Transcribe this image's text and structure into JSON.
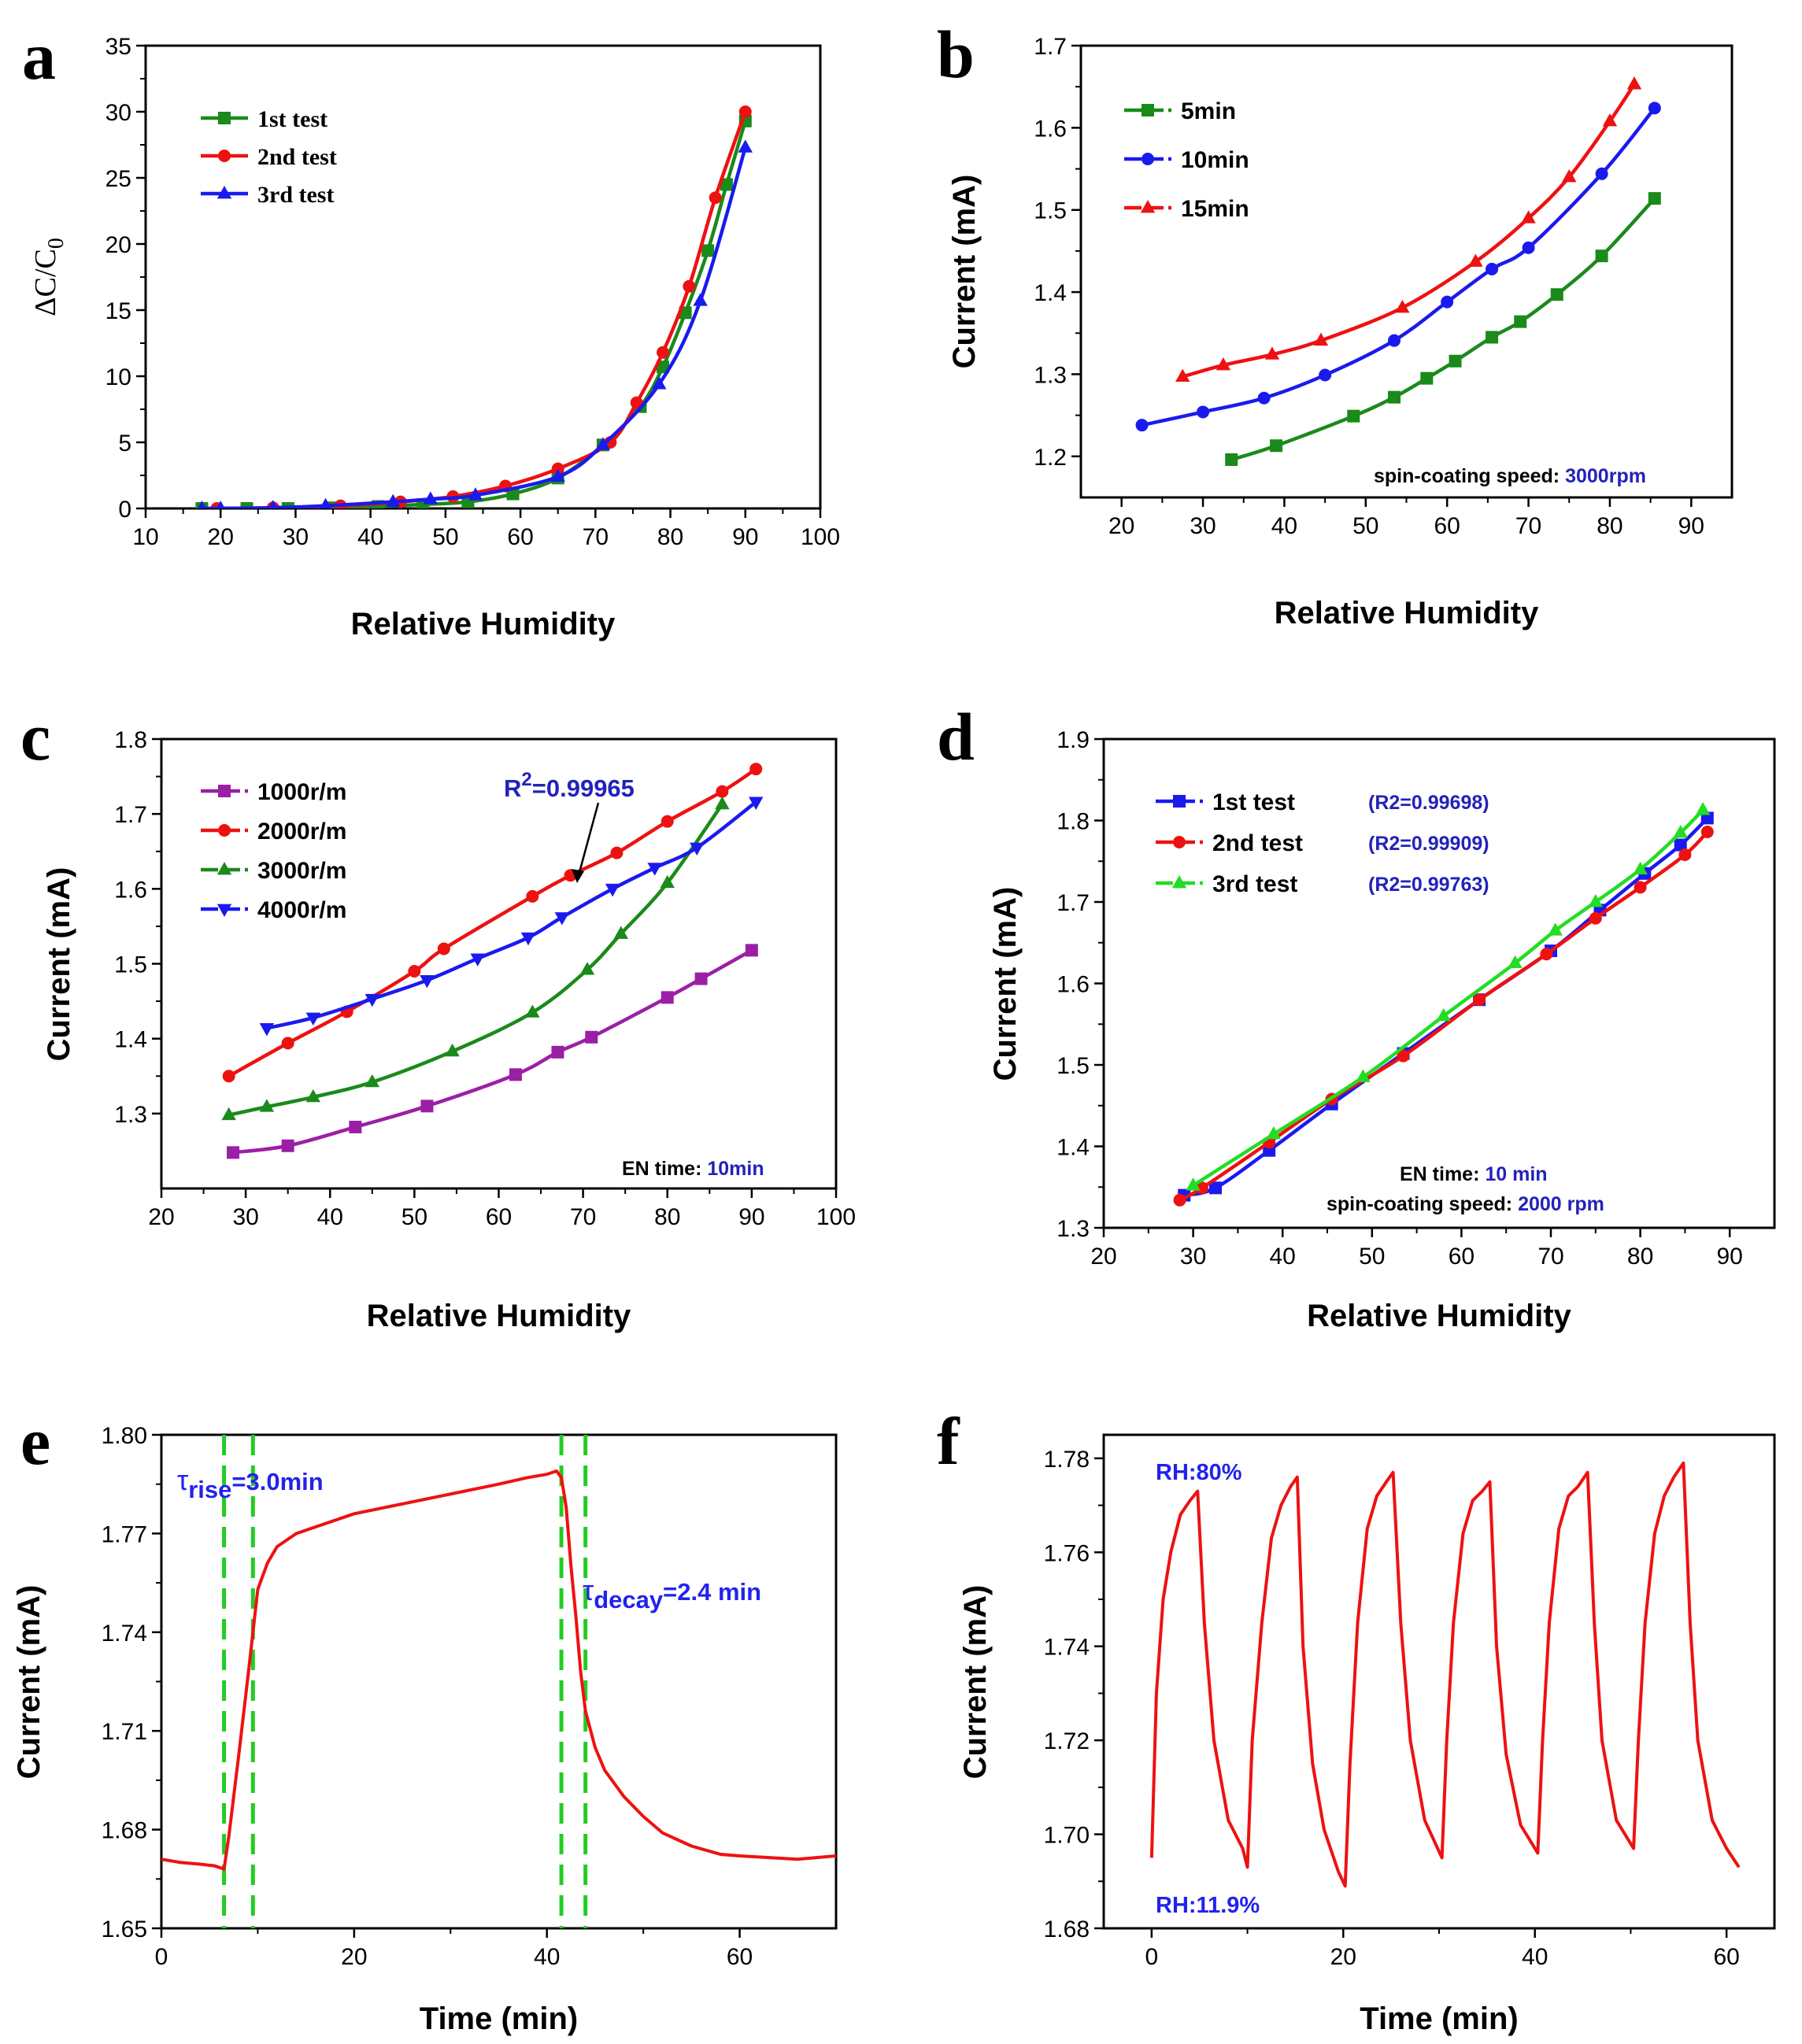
{
  "figure_labels": {
    "a": "a",
    "b": "b",
    "c": "c",
    "d": "d",
    "e": "e",
    "f": "f"
  },
  "chart_data": [
    {
      "id": "a",
      "type": "line",
      "xlabel": "Relative Humidity",
      "ylabel": "ΔC/C0",
      "xlim": [
        10,
        100
      ],
      "ylim": [
        0,
        35
      ],
      "xticks": [
        10,
        20,
        30,
        40,
        50,
        60,
        70,
        80,
        90,
        100
      ],
      "yticks": [
        0,
        5,
        10,
        15,
        20,
        25,
        30,
        35
      ],
      "legend_position": "top-left",
      "series": [
        {
          "name": "1st test",
          "color": "#1a8a1a",
          "marker": "square",
          "x": [
            17.5,
            23.5,
            29,
            35,
            41,
            47,
            53,
            59,
            65,
            71,
            76,
            79,
            82,
            85,
            87.5,
            90
          ],
          "y": [
            0,
            0,
            0,
            0.05,
            0.15,
            0.3,
            0.5,
            1.1,
            2.3,
            4.8,
            7.7,
            10.7,
            14.8,
            19.5,
            24.5,
            29.3
          ]
        },
        {
          "name": "2nd test",
          "color": "#ee1111",
          "marker": "circle",
          "x": [
            19.5,
            27,
            36,
            44,
            51,
            58,
            65,
            72,
            75.5,
            79,
            82.5,
            86,
            90
          ],
          "y": [
            0,
            0.05,
            0.2,
            0.5,
            0.9,
            1.7,
            3.0,
            5.0,
            8.0,
            11.8,
            16.8,
            23.5,
            30.0
          ]
        },
        {
          "name": "3rd test",
          "color": "#1a1aee",
          "marker": "triangle",
          "x": [
            17.5,
            20,
            27,
            34,
            43,
            48,
            54,
            65,
            71,
            78.5,
            84,
            90
          ],
          "y": [
            0,
            0,
            0.05,
            0.2,
            0.5,
            0.7,
            1.0,
            2.4,
            4.8,
            9.4,
            15.7,
            27.3
          ]
        }
      ]
    },
    {
      "id": "b",
      "type": "line",
      "xlabel": "Relative Humidity",
      "ylabel": "Current (mA)",
      "xlim": [
        15,
        95
      ],
      "ylim": [
        1.15,
        1.7
      ],
      "xticks": [
        20,
        30,
        40,
        50,
        60,
        70,
        80,
        90
      ],
      "yticks": [
        1.2,
        1.3,
        1.4,
        1.5,
        1.6,
        1.7
      ],
      "legend_position": "top-left",
      "annotations": [
        {
          "label": "spin-coating speed:",
          "value": "3000rpm"
        }
      ],
      "series": [
        {
          "name": "5min",
          "color": "#1a8a1a",
          "marker": "square",
          "x": [
            33.5,
            39,
            48.5,
            53.5,
            57.5,
            61,
            65.5,
            69,
            73.5,
            79,
            85.5
          ],
          "y": [
            1.196,
            1.213,
            1.249,
            1.272,
            1.295,
            1.316,
            1.345,
            1.364,
            1.397,
            1.444,
            1.514
          ]
        },
        {
          "name": "10min",
          "color": "#1a1aee",
          "marker": "circle",
          "x": [
            22.5,
            30,
            37.5,
            45,
            53.5,
            60,
            65.5,
            70,
            79,
            85.5
          ],
          "y": [
            1.238,
            1.254,
            1.271,
            1.299,
            1.341,
            1.388,
            1.428,
            1.454,
            1.544,
            1.624
          ]
        },
        {
          "name": "15min",
          "color": "#ee1111",
          "marker": "triangle",
          "x": [
            27.5,
            32.5,
            38.5,
            44.5,
            54.5,
            63.5,
            70,
            75,
            80,
            83
          ],
          "y": [
            1.297,
            1.311,
            1.324,
            1.341,
            1.381,
            1.437,
            1.49,
            1.54,
            1.608,
            1.653
          ]
        }
      ]
    },
    {
      "id": "c",
      "type": "line",
      "xlabel": "Relative Humidity",
      "ylabel": "Current (mA)",
      "xlim": [
        20,
        100
      ],
      "ylim": [
        1.2,
        1.8
      ],
      "xticks": [
        20,
        30,
        40,
        50,
        60,
        70,
        80,
        90,
        100
      ],
      "yticks": [
        1.3,
        1.4,
        1.5,
        1.6,
        1.7,
        1.8
      ],
      "legend_position": "top-left",
      "r2_annotation": "R²=0.99965",
      "annotations": [
        {
          "label": "EN time:",
          "value": "10min"
        }
      ],
      "series": [
        {
          "name": "1000r/m",
          "color": "#9b1fa6",
          "marker": "square",
          "x": [
            28.5,
            35,
            43,
            51.5,
            62,
            67,
            71,
            80,
            84,
            90
          ],
          "y": [
            1.248,
            1.257,
            1.282,
            1.31,
            1.352,
            1.382,
            1.402,
            1.455,
            1.48,
            1.518
          ]
        },
        {
          "name": "2000r/m",
          "color": "#ee1111",
          "marker": "circle",
          "x": [
            28,
            35,
            42,
            50,
            53.5,
            64,
            68.5,
            74,
            80,
            86.5,
            90.5
          ],
          "y": [
            1.35,
            1.394,
            1.436,
            1.49,
            1.52,
            1.59,
            1.618,
            1.648,
            1.69,
            1.73,
            1.76
          ]
        },
        {
          "name": "3000r/m",
          "color": "#1a8a1a",
          "marker": "triangle",
          "x": [
            28,
            32.5,
            38,
            45,
            54.5,
            64,
            70.5,
            74.5,
            80,
            86.5
          ],
          "y": [
            1.298,
            1.309,
            1.322,
            1.342,
            1.383,
            1.435,
            1.492,
            1.54,
            1.608,
            1.713
          ]
        },
        {
          "name": "4000r/m",
          "color": "#1a1aee",
          "marker": "down-triangle",
          "x": [
            32.5,
            38,
            45,
            51.5,
            57.5,
            63.5,
            67.5,
            73.5,
            78.5,
            83.5,
            90.5
          ],
          "y": [
            1.414,
            1.428,
            1.453,
            1.478,
            1.507,
            1.535,
            1.562,
            1.6,
            1.628,
            1.655,
            1.716
          ]
        }
      ]
    },
    {
      "id": "d",
      "type": "line",
      "xlabel": "Relative Humidity",
      "ylabel": "Current (mA)",
      "xlim": [
        20,
        95
      ],
      "ylim": [
        1.3,
        1.9
      ],
      "xticks": [
        20,
        30,
        40,
        50,
        60,
        70,
        80,
        90
      ],
      "yticks": [
        1.3,
        1.4,
        1.5,
        1.6,
        1.7,
        1.8,
        1.9
      ],
      "legend_position": "top-left",
      "annotations": [
        {
          "label": "EN time:",
          "value": "10 min"
        },
        {
          "label": "spin-coating speed:",
          "value": "2000 rpm"
        }
      ],
      "series": [
        {
          "name": "1st test",
          "r2": "(R2=0.99698)",
          "color": "#1a1aee",
          "marker": "square",
          "x": [
            29,
            32.5,
            38.5,
            45.5,
            53.5,
            62,
            70,
            75.5,
            80.5,
            84.5,
            87.5
          ],
          "y": [
            1.34,
            1.349,
            1.395,
            1.452,
            1.514,
            1.58,
            1.64,
            1.69,
            1.735,
            1.77,
            1.803
          ]
        },
        {
          "name": "2nd test",
          "r2": "(R2=0.99909)",
          "color": "#ee1111",
          "marker": "circle",
          "x": [
            28.5,
            31,
            38.5,
            45.5,
            53.5,
            62,
            69.5,
            75,
            80,
            85,
            87.5
          ],
          "y": [
            1.334,
            1.349,
            1.405,
            1.458,
            1.511,
            1.58,
            1.636,
            1.68,
            1.718,
            1.758,
            1.786
          ]
        },
        {
          "name": "3rd test",
          "r2": "(R2=0.99763)",
          "color": "#22dd22",
          "marker": "triangle",
          "x": [
            30,
            39,
            49,
            58,
            66,
            70.5,
            75,
            80,
            84.5,
            87
          ],
          "y": [
            1.352,
            1.415,
            1.485,
            1.56,
            1.625,
            1.665,
            1.7,
            1.74,
            1.785,
            1.813
          ]
        }
      ]
    },
    {
      "id": "e",
      "type": "line",
      "xlabel": "Time (min)",
      "ylabel": "Current (mA)",
      "xlim": [
        0,
        70
      ],
      "ylim": [
        1.65,
        1.8
      ],
      "xticks": [
        0,
        20,
        40,
        60
      ],
      "yticks": [
        1.65,
        1.68,
        1.71,
        1.74,
        1.77,
        1.8
      ],
      "vlines": [
        6.5,
        9.5,
        41.5,
        44
      ],
      "annotations": [
        {
          "symbol": "τ",
          "sub": "rise",
          "text": "=3.0min"
        },
        {
          "symbol": "τ",
          "sub": "decay",
          "text": "=2.4 min"
        }
      ],
      "series": [
        {
          "name": "current",
          "color": "#ee1111",
          "x": [
            0,
            2,
            4,
            5.5,
            6.5,
            7,
            8,
            9,
            9.5,
            10,
            11,
            12,
            14,
            16,
            20,
            25,
            30,
            35,
            38,
            40,
            41,
            41.5,
            42,
            42.5,
            43,
            43.5,
            44,
            45,
            46,
            48,
            50,
            52,
            55,
            58,
            60,
            63,
            66,
            68,
            70
          ],
          "y": [
            1.671,
            1.67,
            1.6695,
            1.669,
            1.668,
            1.678,
            1.702,
            1.727,
            1.74,
            1.753,
            1.761,
            1.766,
            1.77,
            1.772,
            1.776,
            1.779,
            1.782,
            1.785,
            1.787,
            1.788,
            1.789,
            1.787,
            1.778,
            1.76,
            1.745,
            1.728,
            1.716,
            1.705,
            1.698,
            1.69,
            1.684,
            1.679,
            1.675,
            1.6725,
            1.672,
            1.6715,
            1.671,
            1.6715,
            1.672
          ]
        }
      ]
    },
    {
      "id": "f",
      "type": "line",
      "xlabel": "Time (min)",
      "ylabel": "Current (mA)",
      "xlim": [
        -5,
        65
      ],
      "ylim": [
        1.68,
        1.785
      ],
      "xticks": [
        0,
        20,
        40,
        60
      ],
      "yticks": [
        1.68,
        1.7,
        1.72,
        1.74,
        1.76,
        1.78
      ],
      "annotations": [
        {
          "text": "RH:80%"
        },
        {
          "text": "RH:11.9%"
        }
      ],
      "series": [
        {
          "name": "current",
          "color": "#ee1111",
          "x": [
            0,
            0.5,
            1.2,
            2,
            3,
            4,
            4.8,
            5.5,
            6.5,
            8,
            9.5,
            10,
            10.5,
            11.5,
            12.5,
            13.5,
            14.5,
            15.2,
            15.8,
            16.8,
            18,
            19.5,
            20.2,
            20.7,
            21.5,
            22.5,
            23.5,
            24.5,
            25.2,
            26,
            27,
            28.5,
            30.3,
            30.8,
            31.5,
            32.5,
            33.5,
            34.5,
            35.3,
            36,
            37,
            38.5,
            40.3,
            40.8,
            41.5,
            42.5,
            43.5,
            44.5,
            45.5,
            46.2,
            47,
            48.5,
            50.3,
            50.8,
            51.5,
            52.5,
            53.5,
            54.5,
            55.5,
            56.2,
            57,
            58.5,
            60,
            61.3
          ],
          "y": [
            1.695,
            1.73,
            1.75,
            1.76,
            1.768,
            1.771,
            1.773,
            1.745,
            1.72,
            1.703,
            1.697,
            1.693,
            1.72,
            1.745,
            1.763,
            1.77,
            1.774,
            1.776,
            1.74,
            1.715,
            1.701,
            1.692,
            1.689,
            1.715,
            1.745,
            1.765,
            1.772,
            1.775,
            1.777,
            1.745,
            1.72,
            1.703,
            1.695,
            1.72,
            1.745,
            1.764,
            1.771,
            1.773,
            1.775,
            1.74,
            1.717,
            1.702,
            1.696,
            1.72,
            1.745,
            1.765,
            1.772,
            1.774,
            1.777,
            1.745,
            1.72,
            1.703,
            1.697,
            1.72,
            1.745,
            1.764,
            1.772,
            1.776,
            1.779,
            1.745,
            1.72,
            1.703,
            1.697,
            1.693
          ]
        }
      ]
    }
  ]
}
